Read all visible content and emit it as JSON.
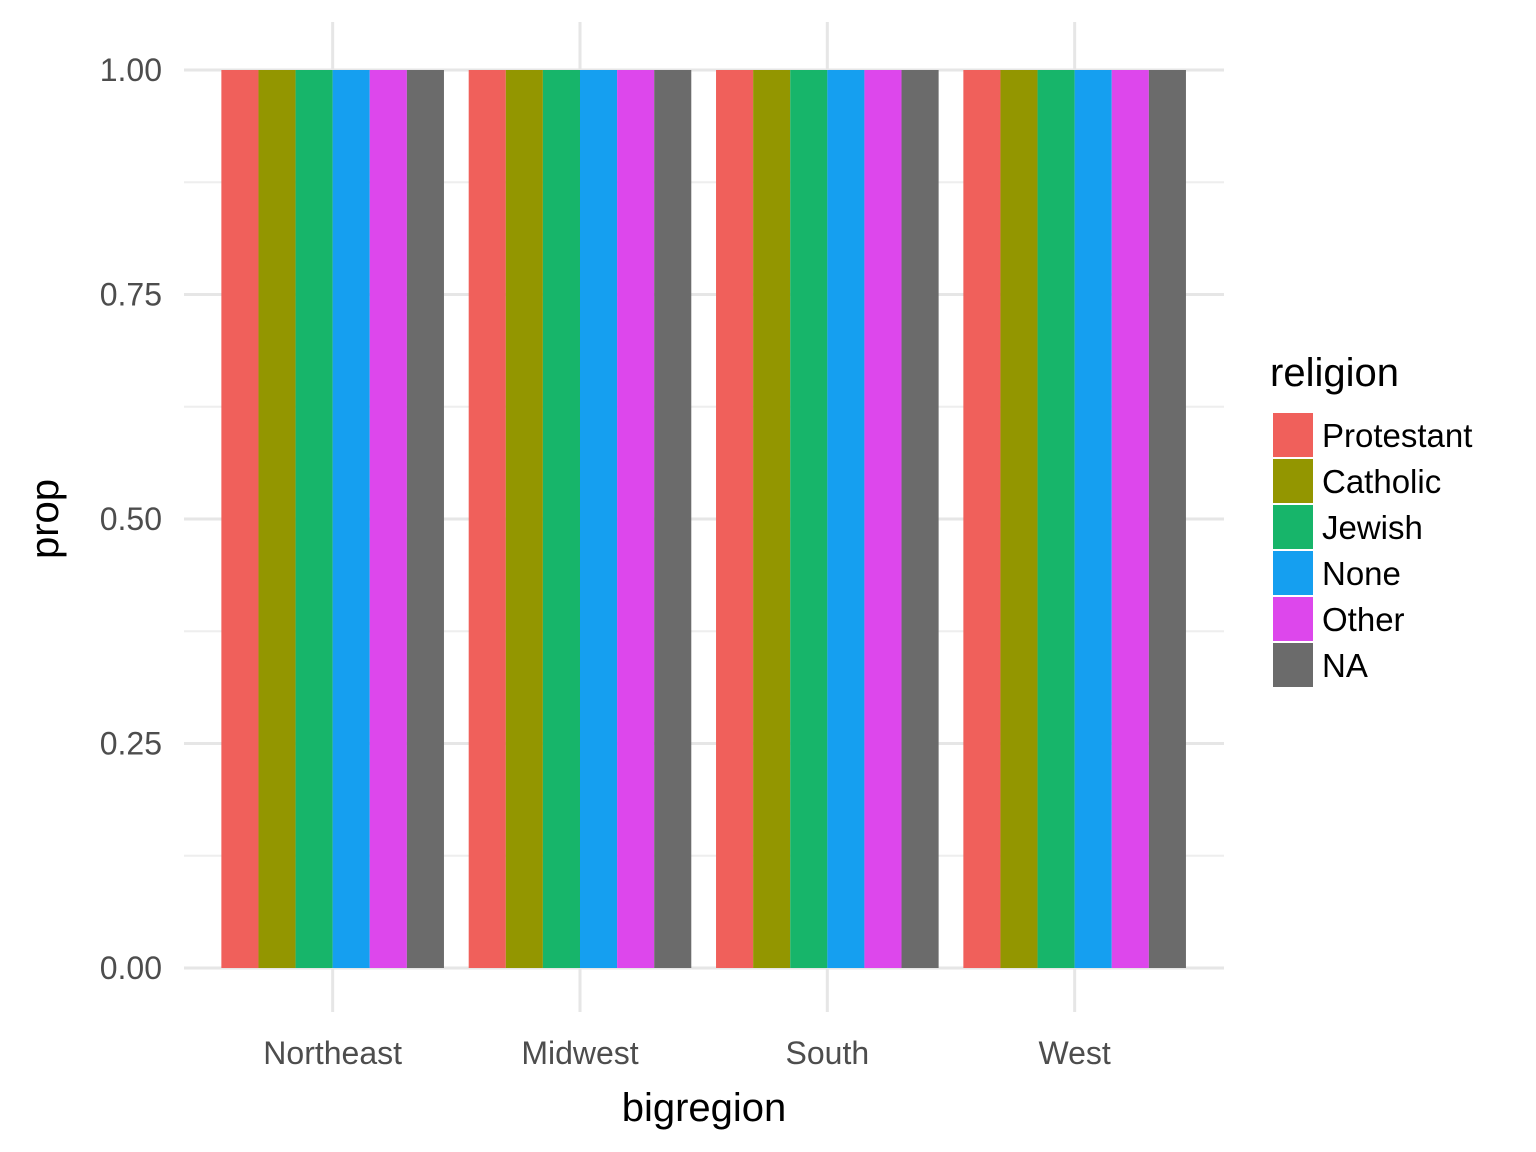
{
  "chart_data": {
    "type": "bar",
    "xlabel": "bigregion",
    "ylabel": "prop",
    "ylim": [
      0,
      1
    ],
    "yticks": [
      "0.00",
      "0.25",
      "0.50",
      "0.75",
      "1.00"
    ],
    "ytick_values": [
      0,
      0.25,
      0.5,
      0.75,
      1
    ],
    "categories": [
      "Northeast",
      "Midwest",
      "South",
      "West"
    ],
    "grid": true,
    "legend": {
      "title": "religion",
      "position": "right"
    },
    "series": [
      {
        "name": "Protestant",
        "color": "#F0605B",
        "values": [
          1,
          1,
          1,
          1
        ]
      },
      {
        "name": "Catholic",
        "color": "#939600",
        "values": [
          1,
          1,
          1,
          1
        ]
      },
      {
        "name": "Jewish",
        "color": "#17B56A",
        "values": [
          1,
          1,
          1,
          1
        ]
      },
      {
        "name": "None",
        "color": "#159FF0",
        "values": [
          1,
          1,
          1,
          1
        ]
      },
      {
        "name": "Other",
        "color": "#DD47EC",
        "values": [
          1,
          1,
          1,
          1
        ]
      },
      {
        "name": "NA",
        "color": "#6B6B6B",
        "values": [
          1,
          1,
          1,
          1
        ]
      }
    ]
  }
}
